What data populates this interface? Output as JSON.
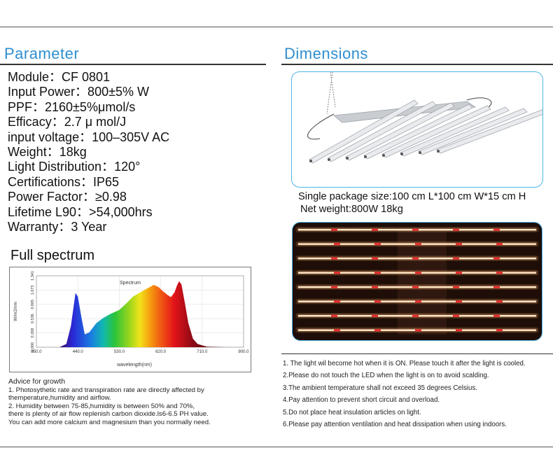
{
  "parameter": {
    "title": "Parameter",
    "items": [
      "Module：CF 0801",
      "Input Power：800±5% W",
      "PPF：2160±5%μmol/s",
      "Efficacy：2.7 μ mol/J",
      "input voltage：100–305V AC",
      "Weight：18kg",
      "Light Distribution：120°",
      "Certifications：IP65",
      "Power Factor：≥0.98",
      "Lifetime  L90：>54,000hrs",
      "Warranty：3 Year"
    ]
  },
  "dimensions": {
    "title": "Dimensions",
    "package_size": "Single package size:100 cm  L*100 cm W*15 cm H",
    "net_weight": "Net weight:800W 18kg"
  },
  "spectrum": {
    "section_title": "Full spectrum",
    "chart_data": {
      "type": "area",
      "title": "Spectrum",
      "xlabel": "wavelength(nm)",
      "ylabel": "W/m2/nm",
      "xlim": [
        350,
        800
      ],
      "ylim": [
        0,
        1.341
      ],
      "x_ticks": [
        "350.0",
        "440.0",
        "530.0",
        "620.0",
        "710.0",
        "800.0"
      ],
      "y_ticks": [
        "0.000",
        "0.268",
        "0.536",
        "0.805",
        "1.073",
        "1.341"
      ],
      "x": [
        400,
        415,
        425,
        435,
        440,
        448,
        455,
        465,
        480,
        495,
        510,
        530,
        545,
        560,
        575,
        590,
        605,
        615,
        625,
        635,
        642,
        650,
        655,
        660,
        665,
        672,
        680,
        690,
        700,
        720,
        760
      ],
      "y": [
        0.0,
        0.06,
        0.4,
        1.02,
        0.95,
        0.55,
        0.24,
        0.28,
        0.45,
        0.55,
        0.62,
        0.7,
        0.82,
        0.95,
        1.03,
        1.1,
        1.17,
        1.13,
        1.05,
        0.98,
        0.94,
        1.03,
        1.15,
        1.24,
        1.18,
        0.85,
        0.45,
        0.16,
        0.06,
        0.01,
        0.0
      ]
    }
  },
  "advice": {
    "title": "Advice for growth",
    "lines": [
      "1. Photosythetic rate and transpiration rate are directly affected by",
      "themperature,humidity and airflow.",
      "2. Humidity between 75-85,humidity is between 50% and 70%,",
      "there is plenty of air flow replenish carbon dioxide.ls6-6.5 PH value.",
      "You can add more calcium and magnesium than you normally need."
    ]
  },
  "notes": [
    "1. The light wil become hot when it is ON. Please touch it after the light is cooled.",
    "2.Please do not touch the LED when the light is on to avoid scalding.",
    "3.The ambient temperature shall not exceed 35 degrees Celsius.",
    "4.Pay attention to prevent short circuit and overload.",
    "5.Do not place heat insulation articles on light.",
    "6.Please pay attention ventilation and heat dissipation when using indoors."
  ],
  "colors": {
    "heading_blue": "#2f8fd0",
    "photo_border": "#4fb5e6",
    "led_white": "#ffe8c8",
    "led_red": "#e23030"
  }
}
